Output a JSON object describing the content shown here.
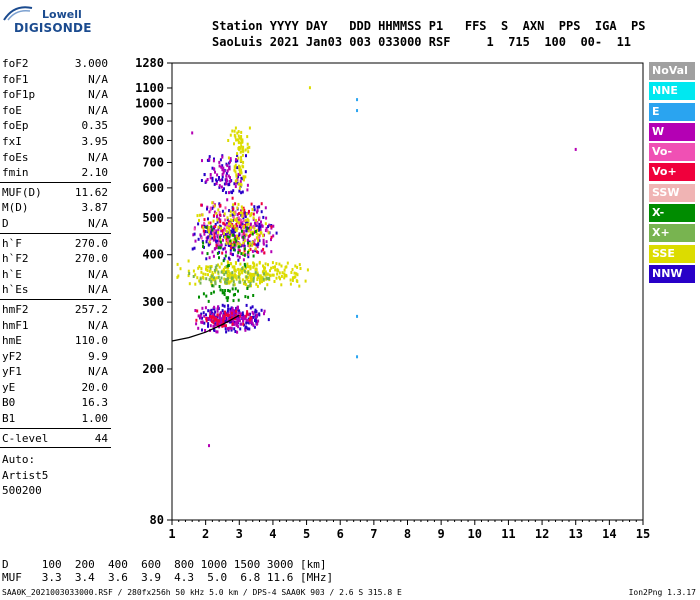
{
  "logo": {
    "line1": "Lowell",
    "line2": "DIGISONDE"
  },
  "header": {
    "line1": "Station YYYY DAY   DDD HHMMSS P1   FFS  S  AXN  PPS  IGA  PS",
    "line2": "SaoLuis 2021 Jan03 003 033000 RSF     1  715  100  00-  11"
  },
  "params": [
    {
      "name": "foF2",
      "value": "3.000"
    },
    {
      "name": "foF1",
      "value": "N/A"
    },
    {
      "name": "foF1p",
      "value": "N/A"
    },
    {
      "name": "foE",
      "value": "N/A"
    },
    {
      "name": "foEp",
      "value": "0.35"
    },
    {
      "name": "fxI",
      "value": "3.95"
    },
    {
      "name": "foEs",
      "value": "N/A"
    },
    {
      "name": "fmin",
      "value": "2.10"
    },
    {
      "sep": true
    },
    {
      "name": "MUF(D)",
      "value": "11.62"
    },
    {
      "name": "M(D)",
      "value": "3.87"
    },
    {
      "name": "D",
      "value": "N/A"
    },
    {
      "sep": true
    },
    {
      "name": "h`F",
      "value": "270.0"
    },
    {
      "name": "h`F2",
      "value": "270.0"
    },
    {
      "name": "h`E",
      "value": "N/A"
    },
    {
      "name": "h`Es",
      "value": "N/A"
    },
    {
      "sep": true
    },
    {
      "name": "hmF2",
      "value": "257.2"
    },
    {
      "name": "hmF1",
      "value": "N/A"
    },
    {
      "name": "hmE",
      "value": "110.0"
    },
    {
      "name": "yF2",
      "value": "9.9"
    },
    {
      "name": "yF1",
      "value": "N/A"
    },
    {
      "name": "yE",
      "value": "20.0"
    },
    {
      "name": "B0",
      "value": "16.3"
    },
    {
      "name": "B1",
      "value": "1.00"
    },
    {
      "sep": true
    },
    {
      "name": "C-level",
      "value": "44"
    },
    {
      "sep": true
    }
  ],
  "auto_block": [
    "Auto:",
    "Artist5",
    "500200"
  ],
  "legend": [
    {
      "label": "NoVal",
      "color": "#a0a0a0"
    },
    {
      "label": "NNE",
      "color": "#00e8f0"
    },
    {
      "label": "E",
      "color": "#2aa4f0"
    },
    {
      "label": "W",
      "color": "#b400b4"
    },
    {
      "label": "Vo-",
      "color": "#f050b4"
    },
    {
      "label": "Vo+",
      "color": "#f0003c"
    },
    {
      "label": "SSW",
      "color": "#f0b4b4"
    },
    {
      "label": "X-",
      "color": "#008c00"
    },
    {
      "label": "X+",
      "color": "#78b450"
    },
    {
      "label": "SSE",
      "color": "#dcdc00"
    },
    {
      "label": "NNW",
      "color": "#2800c8"
    }
  ],
  "bottom": {
    "d_line": "D     100  200  400  600  800 1000 1500 3000 [km]",
    "muf_line": "MUF   3.3  3.4  3.6  3.9  4.3  5.0  6.8 11.6 [MHz]",
    "footer": "SAA0K_2021003033000.RSF / 280fx256h 50 kHz 5.0 km / DPS-4 SAA0K 903 / 2.6 S 315.8 E",
    "version": "Ion2Png 1.3.17"
  },
  "chart_data": {
    "type": "scatter",
    "x_ticks": [
      1,
      2,
      3,
      4,
      5,
      6,
      7,
      8,
      9,
      10,
      11,
      12,
      13,
      14,
      15
    ],
    "y_ticks": [
      80,
      200,
      300,
      400,
      500,
      600,
      700,
      800,
      900,
      1000,
      1100,
      1280
    ],
    "xlim": [
      1,
      15
    ],
    "ylim": [
      80,
      1280
    ],
    "y_scale": "log",
    "grid": false,
    "trace": {
      "description": "virtual height profile (black line)",
      "x": [
        1.0,
        1.5,
        2.0,
        2.5,
        3.0
      ],
      "y": [
        237,
        242,
        250,
        262,
        277
      ]
    },
    "clusters": [
      {
        "color": "#2800c8",
        "x": [
          1.6,
          3.9
        ],
        "y": [
          250,
          300
        ],
        "n": 160
      },
      {
        "color": "#b400b4",
        "x": [
          1.6,
          3.8
        ],
        "y": [
          250,
          300
        ],
        "n": 140
      },
      {
        "color": "#f0003c",
        "x": [
          1.5,
          3.5
        ],
        "y": [
          260,
          290
        ],
        "n": 50
      },
      {
        "color": "#dcdc00",
        "x": [
          1.0,
          5.2
        ],
        "y": [
          330,
          390
        ],
        "n": 280
      },
      {
        "color": "#78b450",
        "x": [
          1.2,
          4.0
        ],
        "y": [
          320,
          380
        ],
        "n": 60
      },
      {
        "color": "#b400b4",
        "x": [
          1.5,
          4.2
        ],
        "y": [
          380,
          560
        ],
        "n": 180
      },
      {
        "color": "#2800c8",
        "x": [
          1.5,
          4.2
        ],
        "y": [
          380,
          560
        ],
        "n": 140
      },
      {
        "color": "#f0003c",
        "x": [
          1.6,
          4.0
        ],
        "y": [
          390,
          600
        ],
        "n": 60
      },
      {
        "color": "#f050b4",
        "x": [
          1.6,
          4.0
        ],
        "y": [
          390,
          600
        ],
        "n": 50
      },
      {
        "color": "#dcdc00",
        "x": [
          1.7,
          4.0
        ],
        "y": [
          400,
          560
        ],
        "n": 110
      },
      {
        "color": "#008c00",
        "x": [
          1.6,
          3.8
        ],
        "y": [
          360,
          520
        ],
        "n": 40
      },
      {
        "color": "#2800c8",
        "x": [
          1.8,
          3.4
        ],
        "y": [
          560,
          760
        ],
        "n": 60
      },
      {
        "color": "#b400b4",
        "x": [
          1.8,
          3.4
        ],
        "y": [
          560,
          760
        ],
        "n": 50
      },
      {
        "color": "#dcdc00",
        "x": [
          2.8,
          3.2
        ],
        "y": [
          580,
          880
        ],
        "n": 50
      },
      {
        "color": "#dcdc00",
        "x": [
          2.6,
          3.3
        ],
        "y": [
          700,
          900
        ],
        "n": 30
      },
      {
        "color": "#008c00",
        "x": [
          1.5,
          3.6
        ],
        "y": [
          300,
          340
        ],
        "n": 30
      }
    ],
    "outliers": [
      {
        "x": 1.6,
        "y": 840,
        "color": "#b400b4"
      },
      {
        "x": 2.1,
        "y": 126,
        "color": "#b400b4"
      },
      {
        "x": 5.1,
        "y": 1105,
        "color": "#dcdc00"
      },
      {
        "x": 6.5,
        "y": 1028,
        "color": "#2aa4f0"
      },
      {
        "x": 6.5,
        "y": 962,
        "color": "#2aa4f0"
      },
      {
        "x": 6.5,
        "y": 276,
        "color": "#2aa4f0"
      },
      {
        "x": 6.5,
        "y": 216,
        "color": "#2aa4f0"
      },
      {
        "x": 13.0,
        "y": 760,
        "color": "#b400b4"
      }
    ]
  }
}
